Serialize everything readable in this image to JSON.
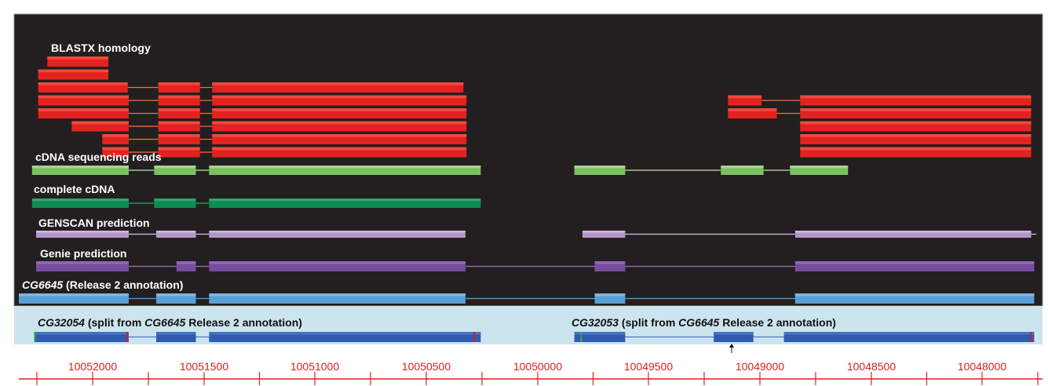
{
  "tracks": [
    {
      "id": "blastx",
      "label": "BLASTX homology",
      "color": "#e3231f",
      "light": "#ff6a5a",
      "line": "#ff6a45",
      "rows": [
        {
          "exons": [
            [
              0.028,
              0.088
            ]
          ],
          "introns": []
        },
        {
          "exons": [
            [
              0.019,
              0.088
            ]
          ],
          "introns": []
        },
        {
          "exons": [
            [
              0.019,
              0.107
            ],
            [
              0.137,
              0.178
            ],
            [
              0.19,
              0.437
            ]
          ],
          "introns": [
            [
              0.107,
              0.137
            ],
            [
              0.178,
              0.19
            ]
          ]
        },
        {
          "exons": [
            [
              0.019,
              0.108
            ],
            [
              0.137,
              0.178
            ],
            [
              0.19,
              0.44
            ],
            [
              0.697,
              0.73
            ],
            [
              0.768,
              0.995
            ]
          ],
          "introns": [
            [
              0.108,
              0.137
            ],
            [
              0.178,
              0.19
            ],
            [
              0.73,
              0.768
            ]
          ]
        },
        {
          "exons": [
            [
              0.019,
              0.108
            ],
            [
              0.137,
              0.178
            ],
            [
              0.19,
              0.44
            ],
            [
              0.697,
              0.745
            ],
            [
              0.768,
              0.995
            ]
          ],
          "introns": [
            [
              0.108,
              0.137
            ],
            [
              0.178,
              0.19
            ],
            [
              0.745,
              0.768
            ]
          ]
        },
        {
          "exons": [
            [
              0.052,
              0.108
            ],
            [
              0.137,
              0.178
            ],
            [
              0.19,
              0.44
            ],
            [
              0.768,
              0.995
            ]
          ],
          "introns": [
            [
              0.108,
              0.137
            ],
            [
              0.178,
              0.19
            ]
          ]
        },
        {
          "exons": [
            [
              0.082,
              0.108
            ],
            [
              0.137,
              0.178
            ],
            [
              0.19,
              0.44
            ],
            [
              0.768,
              0.995
            ]
          ],
          "introns": [
            [
              0.108,
              0.137
            ],
            [
              0.178,
              0.19
            ]
          ]
        },
        {
          "exons": [
            [
              0.082,
              0.108
            ],
            [
              0.137,
              0.178
            ],
            [
              0.19,
              0.44
            ],
            [
              0.768,
              0.995
            ]
          ],
          "introns": [
            [
              0.108,
              0.137
            ],
            [
              0.178,
              0.19
            ]
          ]
        }
      ]
    },
    {
      "id": "cdna_reads",
      "label": "cDNA sequencing reads",
      "color": "#7bbf63",
      "light": "#c6eba9",
      "line": "#b5e39a",
      "rows": [
        {
          "exons": [
            [
              0.013,
              0.108
            ],
            [
              0.133,
              0.174
            ],
            [
              0.187,
              0.454
            ],
            [
              0.546,
              0.596
            ],
            [
              0.69,
              0.732
            ],
            [
              0.758,
              0.815
            ]
          ],
          "introns": [
            [
              0.108,
              0.133
            ],
            [
              0.174,
              0.187
            ],
            [
              0.596,
              0.69
            ],
            [
              0.732,
              0.758
            ]
          ]
        }
      ]
    },
    {
      "id": "complete_cdna",
      "label": "complete cDNA",
      "color": "#0f8c52",
      "light": "#3fbf83",
      "line": "#2aa868",
      "rows": [
        {
          "exons": [
            [
              0.013,
              0.108
            ],
            [
              0.133,
              0.174
            ],
            [
              0.187,
              0.454
            ]
          ],
          "introns": [
            [
              0.108,
              0.133
            ],
            [
              0.174,
              0.187
            ]
          ]
        }
      ]
    },
    {
      "id": "genscan",
      "label": "GENSCAN prediction",
      "color": "#b496c6",
      "light": "#e6d3f0",
      "line": "#d7c2e6",
      "rows": [
        {
          "exons": [
            [
              0.017,
              0.108
            ],
            [
              0.135,
              0.174
            ],
            [
              0.187,
              0.439
            ],
            [
              0.554,
              0.596
            ],
            [
              0.763,
              0.995
            ]
          ],
          "introns": [
            [
              0.108,
              0.135
            ],
            [
              0.174,
              0.187
            ],
            [
              0.596,
              0.763
            ],
            [
              0.995,
              1.0
            ]
          ]
        }
      ]
    },
    {
      "id": "genie",
      "label": "Genie prediction",
      "color": "#7a4ca0",
      "light": "#a47dc7",
      "line": "#9a73c0",
      "rows": [
        {
          "exons": [
            [
              0.017,
              0.108
            ],
            [
              0.155,
              0.174
            ],
            [
              0.187,
              0.439
            ],
            [
              0.566,
              0.596
            ],
            [
              0.763,
              0.998
            ]
          ],
          "introns": [
            [
              0.108,
              0.155
            ],
            [
              0.174,
              0.187
            ],
            [
              0.439,
              0.566
            ],
            [
              0.596,
              0.763
            ]
          ]
        }
      ]
    },
    {
      "id": "cg6645",
      "label_italic": "CG6645",
      "label_rest": " (Release 2 annotation)",
      "color": "#5a9fd5",
      "light": "#9ccaee",
      "line": "#5a9fd5",
      "rows": [
        {
          "exons": [
            [
              0.0,
              0.108
            ],
            [
              0.135,
              0.174
            ],
            [
              0.187,
              0.439
            ],
            [
              0.566,
              0.596
            ],
            [
              0.763,
              0.998
            ]
          ],
          "introns": [
            [
              0.108,
              0.135
            ],
            [
              0.174,
              0.187
            ],
            [
              0.439,
              0.566
            ],
            [
              0.596,
              0.763
            ]
          ]
        }
      ]
    }
  ],
  "split_genes": {
    "left": {
      "italic1": "CG32054",
      "mid": " (split from ",
      "italic2": "CG6645",
      "rest": " Release 2 annotation)"
    },
    "right": {
      "italic1": "CG32053",
      "mid": " (split from ",
      "italic2": "CG6645",
      "rest": " Release 2 annotation)"
    },
    "color": "#2f5bb0",
    "light": "#5a86d0",
    "line": "#4a76c4",
    "rows": [
      {
        "exons": [
          [
            0.015,
            0.108
          ],
          [
            0.135,
            0.174
          ],
          [
            0.187,
            0.454
          ],
          [
            0.546,
            0.596
          ],
          [
            0.683,
            0.722
          ],
          [
            0.752,
            0.998
          ]
        ],
        "introns": [
          [
            0.108,
            0.135
          ],
          [
            0.174,
            0.187
          ],
          [
            0.596,
            0.683
          ],
          [
            0.722,
            0.752
          ]
        ]
      }
    ]
  },
  "ruler": {
    "color": "#e02020",
    "labels": [
      "10052000",
      "10051500",
      "10051000",
      "10050500",
      "10050000",
      "10049500",
      "10049000",
      "10048500",
      "10048000"
    ]
  },
  "colors": {
    "dark_panel": "#231f20",
    "split_panel": "#cce4ee",
    "ruler": "#e02020"
  }
}
